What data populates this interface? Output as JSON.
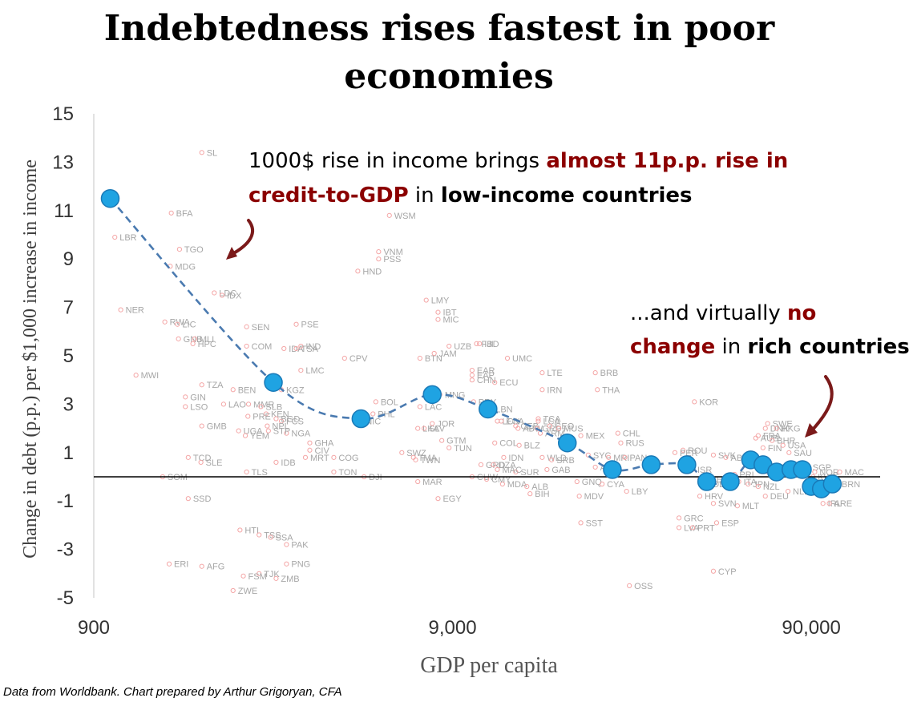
{
  "chart_data": {
    "type": "scatter",
    "title_lines": [
      "Indebtedness rises fastest in poor",
      "economies"
    ],
    "xlabel": "GDP per capita",
    "ylabel": "Change in debt (p.p.) per $1,000 increase in income",
    "x_scale": "log",
    "xlim": [
      900,
      140000
    ],
    "ylim": [
      -5,
      15
    ],
    "x_ticks": [
      900,
      9000,
      90000
    ],
    "x_tick_labels": [
      "900",
      "9,000",
      "90,000"
    ],
    "y_ticks": [
      15,
      13,
      11,
      9,
      7,
      5,
      3,
      1,
      -1,
      -3,
      -5
    ],
    "grid": false,
    "legend": "none",
    "colors": {
      "country_points": "#f4a6a6",
      "country_labels": "#a6a6a6",
      "trend_points": "#1fa3e2",
      "trend_points_edge": "#1a7ab8",
      "trend_line": "#4a7ab0",
      "highlight": "#8b0000",
      "arrow": "#7b1a1a"
    },
    "annotations": [
      {
        "lines": [
          [
            {
              "t": "1000$ rise in income brings ",
              "s": "normal"
            },
            {
              "t": "almost 11p.p. rise in",
              "s": "red"
            }
          ],
          [
            {
              "t": "credit-to-GDP",
              "s": "red"
            },
            {
              "t": " in ",
              "s": "normal"
            },
            {
              "t": "low-income countries",
              "s": "bold"
            }
          ]
        ]
      },
      {
        "lines": [
          [
            {
              "t": "...and virtually ",
              "s": "normal"
            },
            {
              "t": "no",
              "s": "red"
            }
          ],
          [
            {
              "t": "change",
              "s": "red"
            },
            {
              "t": " in ",
              "s": "normal"
            },
            {
              "t": "rich countries",
              "s": "bold"
            }
          ]
        ]
      }
    ],
    "trend_series": {
      "x": [
        1000,
        2850,
        5000,
        7900,
        11300,
        18800,
        25100,
        32200,
        40500,
        46000,
        53500,
        61000,
        66000,
        72000,
        79000,
        85000,
        90000,
        96000,
        103000
      ],
      "y": [
        11.5,
        3.9,
        2.4,
        3.4,
        2.8,
        1.4,
        0.3,
        0.5,
        0.5,
        -0.2,
        -0.2,
        0.7,
        0.5,
        0.2,
        0.3,
        0.3,
        -0.4,
        -0.5,
        -0.3
      ]
    },
    "countries": [
      {
        "label": "BFA",
        "x": 1480,
        "y": 10.9
      },
      {
        "label": "LBR",
        "x": 1030,
        "y": 9.9
      },
      {
        "label": "TGO",
        "x": 1560,
        "y": 9.4
      },
      {
        "label": "MDG",
        "x": 1470,
        "y": 8.7
      },
      {
        "label": "NER",
        "x": 1070,
        "y": 6.9
      },
      {
        "label": "RWA",
        "x": 1420,
        "y": 6.4
      },
      {
        "label": "LIC",
        "x": 1540,
        "y": 6.3
      },
      {
        "label": "GNB",
        "x": 1550,
        "y": 5.7
      },
      {
        "label": "MLI",
        "x": 1720,
        "y": 5.7
      },
      {
        "label": "HPC",
        "x": 1700,
        "y": 5.5
      },
      {
        "label": "MWI",
        "x": 1180,
        "y": 4.2
      },
      {
        "label": "SL",
        "x": 1800,
        "y": 13.4
      },
      {
        "label": "LDC",
        "x": 1950,
        "y": 7.6
      },
      {
        "label": "IDX",
        "x": 2050,
        "y": 7.5
      },
      {
        "label": "SEN",
        "x": 2400,
        "y": 6.2
      },
      {
        "label": "COM",
        "x": 2400,
        "y": 5.4
      },
      {
        "label": "TZA",
        "x": 1800,
        "y": 3.8
      },
      {
        "label": "GIN",
        "x": 1620,
        "y": 3.3
      },
      {
        "label": "BEN",
        "x": 2200,
        "y": 3.6
      },
      {
        "label": "LAO",
        "x": 2070,
        "y": 3.0
      },
      {
        "label": "LSO",
        "x": 1620,
        "y": 2.9
      },
      {
        "label": "MMR",
        "x": 2430,
        "y": 3.0
      },
      {
        "label": "SLB",
        "x": 2630,
        "y": 2.9
      },
      {
        "label": "KEN",
        "x": 2720,
        "y": 2.6
      },
      {
        "label": "PRE",
        "x": 2420,
        "y": 2.5
      },
      {
        "label": "GMB",
        "x": 1800,
        "y": 2.1
      },
      {
        "label": "UGA",
        "x": 2280,
        "y": 1.9
      },
      {
        "label": "YEM",
        "x": 2380,
        "y": 1.7
      },
      {
        "label": "TCD",
        "x": 1650,
        "y": 0.8
      },
      {
        "label": "SLE",
        "x": 1790,
        "y": 0.6
      },
      {
        "label": "SOM",
        "x": 1400,
        "y": 0.0
      },
      {
        "label": "SSD",
        "x": 1650,
        "y": -0.9
      },
      {
        "label": "ERI",
        "x": 1460,
        "y": -3.6
      },
      {
        "label": "AFG",
        "x": 1800,
        "y": -3.7
      },
      {
        "label": "ZWE",
        "x": 2200,
        "y": -4.7
      },
      {
        "label": "HTI",
        "x": 2300,
        "y": -2.2
      },
      {
        "label": "TSS",
        "x": 2600,
        "y": -2.4
      },
      {
        "label": "SSA",
        "x": 2800,
        "y": -2.5
      },
      {
        "label": "PAK",
        "x": 3100,
        "y": -2.8
      },
      {
        "label": "PNG",
        "x": 3100,
        "y": -3.6
      },
      {
        "label": "TJK",
        "x": 2600,
        "y": -4.0
      },
      {
        "label": "FSM",
        "x": 2350,
        "y": -4.1
      },
      {
        "label": "ZMB",
        "x": 2900,
        "y": -4.2
      },
      {
        "label": "IDA",
        "x": 3050,
        "y": 5.3
      },
      {
        "label": "IND",
        "x": 3400,
        "y": 5.4
      },
      {
        "label": "TSA",
        "x": 3300,
        "y": 5.3
      },
      {
        "label": "LMC",
        "x": 3400,
        "y": 4.4
      },
      {
        "label": "PSE",
        "x": 3300,
        "y": 6.3
      },
      {
        "label": "KGZ",
        "x": 3000,
        "y": 3.6
      },
      {
        "label": "FCS",
        "x": 3000,
        "y": 2.3
      },
      {
        "label": "BGD",
        "x": 2900,
        "y": 2.4
      },
      {
        "label": "NGA",
        "x": 3100,
        "y": 1.8
      },
      {
        "label": "GHA",
        "x": 3600,
        "y": 1.4
      },
      {
        "label": "CIV",
        "x": 3600,
        "y": 1.1
      },
      {
        "label": "MRT",
        "x": 3500,
        "y": 0.8
      },
      {
        "label": "IDB",
        "x": 2900,
        "y": 0.6
      },
      {
        "label": "TLS",
        "x": 2400,
        "y": 0.2
      },
      {
        "label": "STP",
        "x": 2760,
        "y": 1.9
      },
      {
        "label": "NPL",
        "x": 2740,
        "y": 2.1
      },
      {
        "label": "COG",
        "x": 4200,
        "y": 0.8
      },
      {
        "label": "TON",
        "x": 4200,
        "y": 0.2
      },
      {
        "label": "DJI",
        "x": 5100,
        "y": 0.0
      },
      {
        "label": "WSM",
        "x": 6000,
        "y": 10.8
      },
      {
        "label": "VNM",
        "x": 5600,
        "y": 9.3
      },
      {
        "label": "PSS",
        "x": 5600,
        "y": 9.0
      },
      {
        "label": "HND",
        "x": 4900,
        "y": 8.5
      },
      {
        "label": "LMY",
        "x": 7600,
        "y": 7.3
      },
      {
        "label": "IBT",
        "x": 8200,
        "y": 6.8
      },
      {
        "label": "MIC",
        "x": 8200,
        "y": 6.5
      },
      {
        "label": "CPV",
        "x": 4500,
        "y": 4.9
      },
      {
        "label": "BTN",
        "x": 7300,
        "y": 4.9
      },
      {
        "label": "JAM",
        "x": 8000,
        "y": 5.1
      },
      {
        "label": "UZB",
        "x": 8800,
        "y": 5.4
      },
      {
        "label": "FJI",
        "x": 10500,
        "y": 5.5
      },
      {
        "label": "IBD",
        "x": 10700,
        "y": 5.5
      },
      {
        "label": "UMC",
        "x": 12800,
        "y": 4.9
      },
      {
        "label": "EAR",
        "x": 10200,
        "y": 4.4
      },
      {
        "label": "EAP",
        "x": 10200,
        "y": 4.2
      },
      {
        "label": "CHN",
        "x": 10200,
        "y": 4.0
      },
      {
        "label": "ECU",
        "x": 11800,
        "y": 3.9
      },
      {
        "label": "LTE",
        "x": 16000,
        "y": 4.3
      },
      {
        "label": "BRB",
        "x": 22500,
        "y": 4.3
      },
      {
        "label": "IRN",
        "x": 16000,
        "y": 3.6
      },
      {
        "label": "THA",
        "x": 22800,
        "y": 3.6
      },
      {
        "label": "BOL",
        "x": 5500,
        "y": 3.1
      },
      {
        "label": "MNG",
        "x": 8300,
        "y": 3.4
      },
      {
        "label": "LAC",
        "x": 7300,
        "y": 2.9
      },
      {
        "label": "PRY",
        "x": 10300,
        "y": 3.1
      },
      {
        "label": "LBN",
        "x": 11500,
        "y": 2.8
      },
      {
        "label": "PHL",
        "x": 5400,
        "y": 2.6
      },
      {
        "label": "NIC",
        "x": 5000,
        "y": 2.3
      },
      {
        "label": "LKA",
        "x": 7200,
        "y": 2.0
      },
      {
        "label": "SLV",
        "x": 7500,
        "y": 2.0
      },
      {
        "label": "JOR",
        "x": 7900,
        "y": 2.2
      },
      {
        "label": "GTM",
        "x": 8400,
        "y": 1.5
      },
      {
        "label": "TUN",
        "x": 8800,
        "y": 1.2
      },
      {
        "label": "SWZ",
        "x": 6500,
        "y": 1.0
      },
      {
        "label": "TWN",
        "x": 7100,
        "y": 0.7
      },
      {
        "label": "TMA",
        "x": 7000,
        "y": 0.8
      },
      {
        "label": "MAR",
        "x": 7200,
        "y": -0.2
      },
      {
        "label": "EGY",
        "x": 8200,
        "y": -0.9
      },
      {
        "label": "LCN",
        "x": 12000,
        "y": 2.3
      },
      {
        "label": "ECA",
        "x": 12300,
        "y": 2.3
      },
      {
        "label": "CEB",
        "x": 13500,
        "y": 2.1
      },
      {
        "label": "ABW",
        "x": 13700,
        "y": 2.0
      },
      {
        "label": "TCA",
        "x": 15600,
        "y": 2.4
      },
      {
        "label": "LCA",
        "x": 15600,
        "y": 2.3
      },
      {
        "label": "GRD",
        "x": 15500,
        "y": 2.0
      },
      {
        "label": "ARM",
        "x": 15800,
        "y": 1.8
      },
      {
        "label": "GEO",
        "x": 16800,
        "y": 2.1
      },
      {
        "label": "MUS",
        "x": 17800,
        "y": 2.0
      },
      {
        "label": "COL",
        "x": 11800,
        "y": 1.4
      },
      {
        "label": "BLZ",
        "x": 13800,
        "y": 1.3
      },
      {
        "label": "MEX",
        "x": 20500,
        "y": 1.7
      },
      {
        "label": "CHL",
        "x": 26000,
        "y": 1.8
      },
      {
        "label": "RUS",
        "x": 26500,
        "y": 1.4
      },
      {
        "label": "IDN",
        "x": 12500,
        "y": 0.8
      },
      {
        "label": "WLD",
        "x": 16000,
        "y": 0.8
      },
      {
        "label": "SRB",
        "x": 17000,
        "y": 0.7
      },
      {
        "label": "SYC",
        "x": 21500,
        "y": 0.9
      },
      {
        "label": "MRI",
        "x": 24500,
        "y": 0.8
      },
      {
        "label": "GRD",
        "x": 10800,
        "y": 0.5
      },
      {
        "label": "DZA",
        "x": 11700,
        "y": 0.5
      },
      {
        "label": "SUR",
        "x": 13500,
        "y": 0.2
      },
      {
        "label": "GAB",
        "x": 16500,
        "y": 0.3
      },
      {
        "label": "ARG",
        "x": 22500,
        "y": 0.4
      },
      {
        "label": "CUW",
        "x": 10200,
        "y": 0.0
      },
      {
        "label": "PAN",
        "x": 27200,
        "y": 0.8
      },
      {
        "label": "MAC",
        "x": 12000,
        "y": 0.3
      },
      {
        "label": "MDA",
        "x": 12400,
        "y": -0.3
      },
      {
        "label": "ALB",
        "x": 14500,
        "y": -0.4
      },
      {
        "label": "BIH",
        "x": 14800,
        "y": -0.7
      },
      {
        "label": "CMY",
        "x": 11200,
        "y": -0.1
      },
      {
        "label": "GNQ",
        "x": 20000,
        "y": -0.2
      },
      {
        "label": "MDV",
        "x": 20300,
        "y": -0.8
      },
      {
        "label": "CYA",
        "x": 23500,
        "y": -0.3
      },
      {
        "label": "LBY",
        "x": 27500,
        "y": -0.6
      },
      {
        "label": "SST",
        "x": 20500,
        "y": -1.9
      },
      {
        "label": "OSS",
        "x": 28000,
        "y": -4.5
      },
      {
        "label": "KOR",
        "x": 42500,
        "y": 3.1
      },
      {
        "label": "ROU",
        "x": 39500,
        "y": 1.1
      },
      {
        "label": "PER",
        "x": 37500,
        "y": 1.0
      },
      {
        "label": "SVK",
        "x": 48000,
        "y": 0.9
      },
      {
        "label": "AUS",
        "x": 63000,
        "y": 1.6
      },
      {
        "label": "SWE",
        "x": 68000,
        "y": 2.2
      },
      {
        "label": "DNK",
        "x": 67000,
        "y": 2.0
      },
      {
        "label": "HKG",
        "x": 72000,
        "y": 2.0
      },
      {
        "label": "FRA",
        "x": 64000,
        "y": 1.7
      },
      {
        "label": "FIN",
        "x": 66000,
        "y": 1.2
      },
      {
        "label": "BHR",
        "x": 70000,
        "y": 1.5
      },
      {
        "label": "USA",
        "x": 75000,
        "y": 1.3
      },
      {
        "label": "ABC",
        "x": 52000,
        "y": 0.8
      },
      {
        "label": "SAU",
        "x": 78000,
        "y": 1.0
      },
      {
        "label": "SGP",
        "x": 88000,
        "y": 0.4
      },
      {
        "label": "NOR",
        "x": 92000,
        "y": 0.2
      },
      {
        "label": "KWT",
        "x": 91000,
        "y": 0.0
      },
      {
        "label": "MAC",
        "x": 108000,
        "y": 0.2
      },
      {
        "label": "BRN",
        "x": 106000,
        "y": -0.3
      },
      {
        "label": "IRL",
        "x": 97000,
        "y": -1.1
      },
      {
        "label": "ARE",
        "x": 101000,
        "y": -1.1
      },
      {
        "label": "NLD",
        "x": 77500,
        "y": -0.6
      },
      {
        "label": "DEU",
        "x": 67000,
        "y": -0.8
      },
      {
        "label": "MLT",
        "x": 56000,
        "y": -1.2
      },
      {
        "label": "SVN",
        "x": 48000,
        "y": -1.1
      },
      {
        "label": "HRV",
        "x": 44000,
        "y": -0.8
      },
      {
        "label": "ESP",
        "x": 49000,
        "y": -1.9
      },
      {
        "label": "GRC",
        "x": 38500,
        "y": -1.7
      },
      {
        "label": "LVA",
        "x": 38500,
        "y": -2.1
      },
      {
        "label": "PRT",
        "x": 42000,
        "y": -2.1
      },
      {
        "label": "CYP",
        "x": 48000,
        "y": -3.9
      },
      {
        "label": "ISR",
        "x": 42000,
        "y": 0.3
      },
      {
        "label": "CZE",
        "x": 44000,
        "y": -0.1
      },
      {
        "label": "POL",
        "x": 44500,
        "y": -0.3
      },
      {
        "label": "PRI",
        "x": 55000,
        "y": 0.1
      },
      {
        "label": "ITA",
        "x": 56500,
        "y": -0.2
      },
      {
        "label": "JPN",
        "x": 60000,
        "y": -0.3
      },
      {
        "label": "NZL",
        "x": 64000,
        "y": -0.4
      },
      {
        "label": "BEL",
        "x": 68000,
        "y": 0.2
      },
      {
        "label": "CAN",
        "x": 65000,
        "y": 0.4
      },
      {
        "label": "AUT",
        "x": 71000,
        "y": 0.1
      }
    ]
  }
}
